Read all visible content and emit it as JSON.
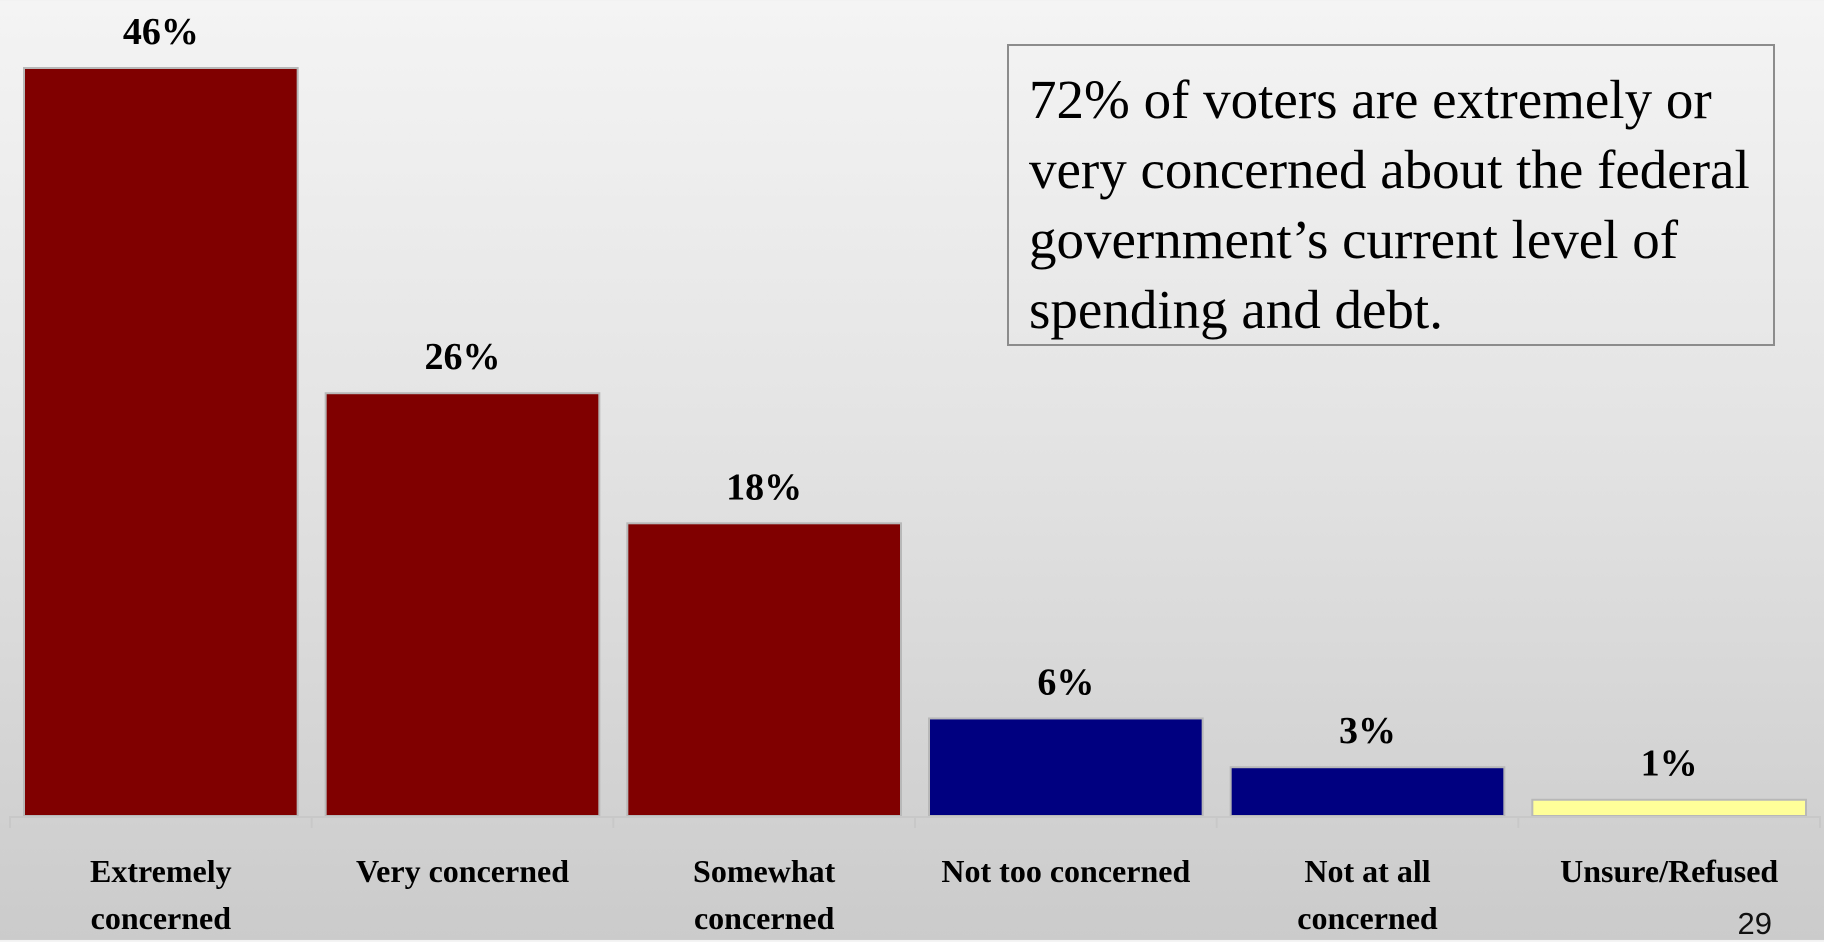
{
  "chart_data": {
    "type": "bar",
    "categories": [
      "Extremely concerned",
      "Very concerned",
      "Somewhat concerned",
      "Not too concerned",
      "Not at all concerned",
      "Unsure/Refused"
    ],
    "values": [
      46,
      26,
      18,
      6,
      3,
      1
    ],
    "data_labels": [
      "46%",
      "26%",
      "18%",
      "6%",
      "3%",
      "1%"
    ],
    "bar_colors": [
      "#800000",
      "#800000",
      "#800000",
      "#000080",
      "#000080",
      "#ffff99"
    ],
    "title": "",
    "xlabel": "",
    "ylabel": "",
    "ylim": [
      0,
      46
    ],
    "grid": false,
    "legend": "none"
  },
  "callout": {
    "text": "72% of voters are extremely or very concerned about the federal government’s current level of spending and debt."
  },
  "page_number": "29"
}
